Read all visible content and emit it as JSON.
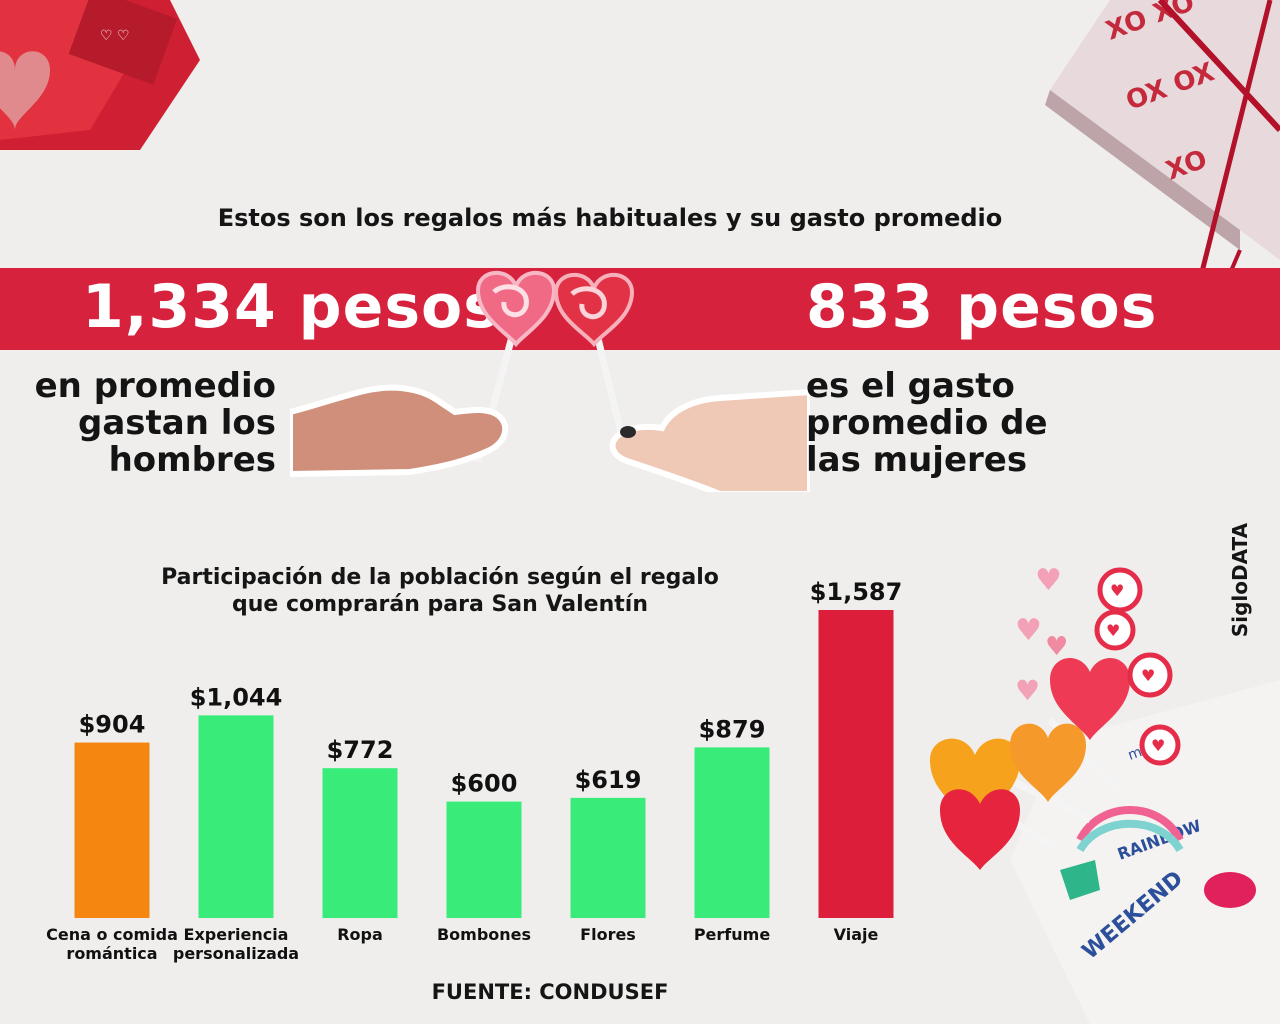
{
  "headline": "Estos son los regalos más habituales y su gasto promedio",
  "men": {
    "amount": "1,334 pesos",
    "caption_lines": [
      "en promedio",
      "gastan los",
      "hombres"
    ]
  },
  "women": {
    "amount": "833 pesos",
    "caption_lines": [
      "es el gasto",
      "promedio de",
      "las mujeres"
    ]
  },
  "chart_title_lines": [
    "Participación de la población según el regalo",
    "que comprarán para San Valentín"
  ],
  "source": "FUENTE: CONDUSEF",
  "brand": "SigloDATA",
  "colors": {
    "band": "#d7223d",
    "bar_orange": "#f5860f",
    "bar_green": "#39ec79",
    "bar_red": "#dc1e3b",
    "background": "#efeeec"
  },
  "icons": [
    "heart-lollipop-icon",
    "hand-icon",
    "gift-box-icon",
    "candy-icon"
  ],
  "chart_data": {
    "type": "bar",
    "title": "Participación de la población según el regalo que comprarán para San Valentín",
    "categories": [
      [
        "Cena o comida",
        "romántica"
      ],
      [
        "Experiencia",
        "personalizada"
      ],
      [
        "Ropa"
      ],
      [
        "Bombones"
      ],
      [
        "Flores"
      ],
      [
        "Perfume"
      ],
      [
        "Viaje"
      ]
    ],
    "values": [
      904,
      1044,
      772,
      600,
      619,
      879,
      1587
    ],
    "value_labels": [
      "$904",
      "$1,044",
      "$772",
      "$600",
      "$619",
      "$879",
      "$1,587"
    ],
    "bar_colors": [
      "#f5860f",
      "#39ec79",
      "#39ec79",
      "#39ec79",
      "#39ec79",
      "#39ec79",
      "#dc1e3b"
    ],
    "ylim": [
      0,
      1587
    ],
    "grid": false,
    "legend": "none",
    "xlabel": "",
    "ylabel": ""
  }
}
